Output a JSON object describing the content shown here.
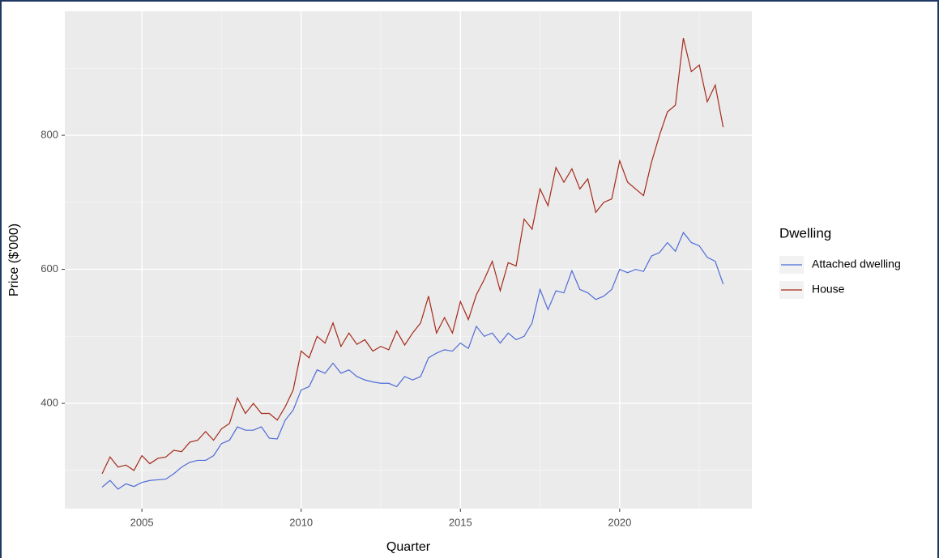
{
  "chart_data": {
    "type": "line",
    "x_label": "Quarter",
    "y_label": "Price ($'000)",
    "legend_title": "Dwelling",
    "x": [
      2003.75,
      2004,
      2004.25,
      2004.5,
      2004.75,
      2005,
      2005.25,
      2005.5,
      2005.75,
      2006,
      2006.25,
      2006.5,
      2006.75,
      2007,
      2007.25,
      2007.5,
      2007.75,
      2008,
      2008.25,
      2008.5,
      2008.75,
      2009,
      2009.25,
      2009.5,
      2009.75,
      2010,
      2010.25,
      2010.5,
      2010.75,
      2011,
      2011.25,
      2011.5,
      2011.75,
      2012,
      2012.25,
      2012.5,
      2012.75,
      2013,
      2013.25,
      2013.5,
      2013.75,
      2014,
      2014.25,
      2014.5,
      2014.75,
      2015,
      2015.25,
      2015.5,
      2015.75,
      2016,
      2016.25,
      2016.5,
      2016.75,
      2017,
      2017.25,
      2017.5,
      2017.75,
      2018,
      2018.25,
      2018.5,
      2018.75,
      2019,
      2019.25,
      2019.5,
      2019.75,
      2020,
      2020.25,
      2020.5,
      2020.75,
      2021,
      2021.25,
      2021.5,
      2021.75,
      2022,
      2022.25,
      2022.5,
      2022.75,
      2023,
      2023.25
    ],
    "series": [
      {
        "name": "Attached dwelling",
        "color": "#4f6bd8",
        "values": [
          275,
          285,
          272,
          280,
          276,
          282,
          285,
          286,
          287,
          295,
          305,
          312,
          315,
          315,
          322,
          340,
          345,
          365,
          360,
          360,
          365,
          348,
          347,
          375,
          390,
          420,
          425,
          450,
          445,
          460,
          445,
          450,
          440,
          435,
          432,
          430,
          430,
          425,
          440,
          435,
          440,
          468,
          475,
          480,
          478,
          490,
          482,
          515,
          500,
          505,
          490,
          505,
          495,
          500,
          520,
          570,
          540,
          568,
          565,
          598,
          570,
          565,
          555,
          560,
          570,
          600,
          595,
          600,
          597,
          620,
          625,
          640,
          627,
          655,
          640,
          635,
          618,
          612,
          578
        ]
      },
      {
        "name": "House",
        "color": "#a52a1a",
        "values": [
          295,
          320,
          305,
          308,
          300,
          322,
          310,
          318,
          320,
          330,
          328,
          342,
          345,
          358,
          345,
          362,
          370,
          408,
          385,
          400,
          385,
          385,
          375,
          395,
          420,
          478,
          468,
          500,
          490,
          520,
          485,
          505,
          488,
          495,
          478,
          485,
          480,
          508,
          487,
          505,
          520,
          560,
          505,
          528,
          505,
          552,
          525,
          562,
          585,
          612,
          568,
          610,
          605,
          675,
          660,
          720,
          695,
          752,
          730,
          750,
          720,
          735,
          685,
          700,
          705,
          762,
          730,
          720,
          710,
          760,
          800,
          835,
          845,
          945,
          895,
          905,
          850,
          875,
          812
        ]
      }
    ],
    "xlim": [
      2002.58,
      2024.15
    ],
    "xticks": [
      2005,
      2010,
      2015,
      2020
    ],
    "ylim": [
      243,
      985
    ],
    "yticks": [
      400,
      600,
      800
    ],
    "grid": true,
    "legend_position": "right"
  }
}
